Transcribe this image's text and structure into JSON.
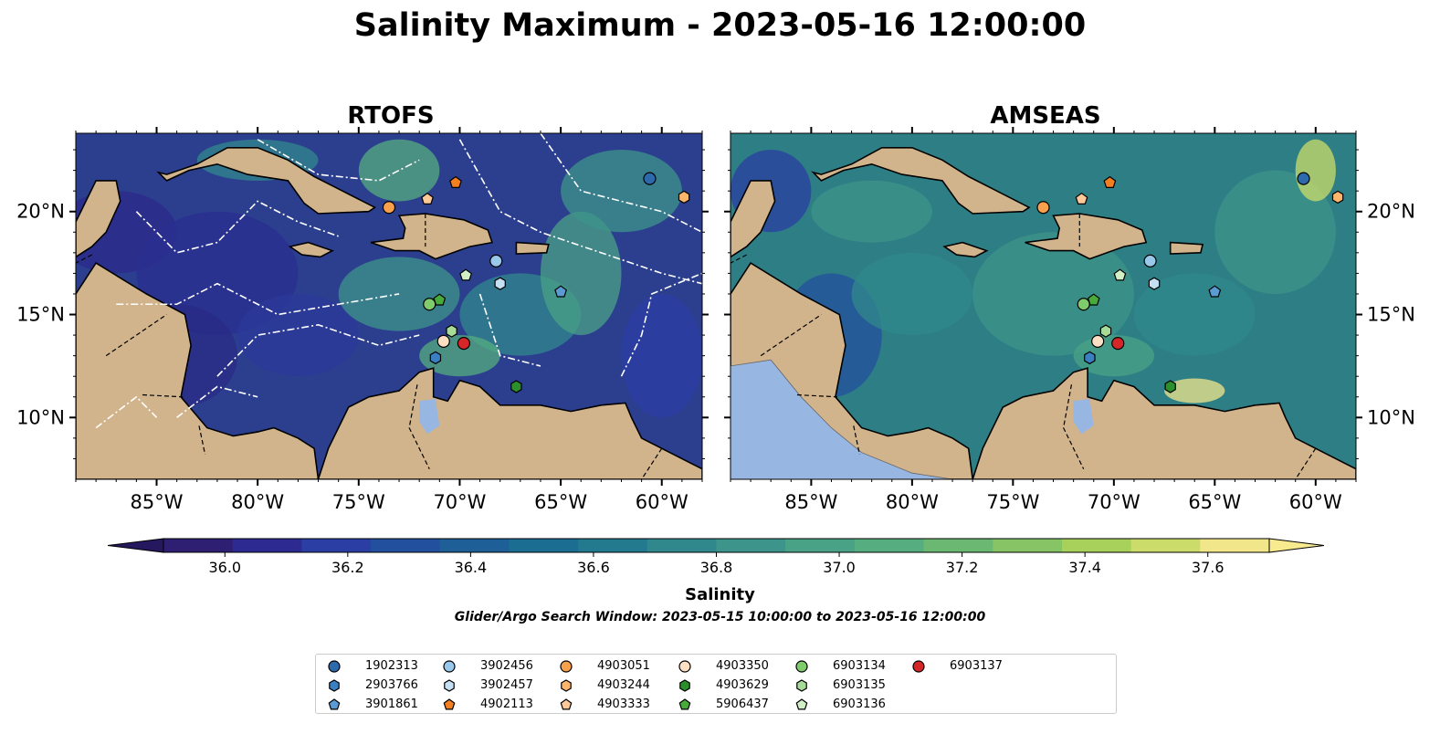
{
  "title": "Salinity Maximum - 2023-05-16 12:00:00",
  "panels": [
    {
      "id": "rtofs",
      "title": "RTOFS",
      "lat_labels_side": "left"
    },
    {
      "id": "amseas",
      "title": "AMSEAS",
      "lat_labels_side": "right"
    }
  ],
  "map_extent": {
    "lon": [
      -89,
      -58
    ],
    "lat": [
      7,
      23.8
    ]
  },
  "lon_ticks": [
    {
      "value": -85,
      "label": "85°W"
    },
    {
      "value": -80,
      "label": "80°W"
    },
    {
      "value": -75,
      "label": "75°W"
    },
    {
      "value": -70,
      "label": "70°W"
    },
    {
      "value": -65,
      "label": "65°W"
    },
    {
      "value": -60,
      "label": "60°W"
    }
  ],
  "lat_ticks": [
    {
      "value": 20,
      "label": "20°N"
    },
    {
      "value": 15,
      "label": "15°N"
    },
    {
      "value": 10,
      "label": "10°N"
    }
  ],
  "colorbar": {
    "label": "Salinity",
    "range": [
      35.9,
      37.7
    ],
    "extend": "both",
    "ticks": [
      "36.0",
      "36.2",
      "36.4",
      "36.6",
      "36.8",
      "37.0",
      "37.2",
      "37.4",
      "37.6"
    ],
    "colors": [
      "#2e1f73",
      "#2d2b91",
      "#2b3ea3",
      "#23509e",
      "#1e5f97",
      "#1b6d92",
      "#237a8f",
      "#30888c",
      "#3d948a",
      "#4aa286",
      "#56ad7f",
      "#6bb872",
      "#86c465",
      "#a8d15b",
      "#cbdc6a",
      "#f2e68b"
    ],
    "under_color": "#26185e",
    "over_color": "#f7ea8f"
  },
  "search_window": "Glider/Argo Search Window: 2023-05-15 10:00:00 to 2023-05-16 12:00:00",
  "colors": {
    "land": "#d2b48c",
    "lakes": "#97b6e1",
    "rtofs_ocean": "#2c3f8f",
    "amseas_ocean": "#2e7f85"
  },
  "platforms": [
    {
      "id": "1902313",
      "marker": "circle",
      "color": "#2c6aab",
      "lon": -60.6,
      "lat": 21.6
    },
    {
      "id": "2903766",
      "marker": "hexagon",
      "color": "#3a7fc1",
      "lon": -71.2,
      "lat": 12.9
    },
    {
      "id": "3901861",
      "marker": "pentagon",
      "color": "#5a9bd4",
      "lon": -65.0,
      "lat": 16.1
    },
    {
      "id": "3902456",
      "marker": "circle",
      "color": "#9ac8ea",
      "lon": -68.2,
      "lat": 17.6
    },
    {
      "id": "3902457",
      "marker": "hexagon",
      "color": "#c6e0f3",
      "lon": -68.0,
      "lat": 16.5
    },
    {
      "id": "4902113",
      "marker": "pentagon",
      "color": "#f47f20",
      "lon": -70.2,
      "lat": 21.4
    },
    {
      "id": "4903051",
      "marker": "circle",
      "color": "#f8a04c",
      "lon": -73.5,
      "lat": 20.2
    },
    {
      "id": "4903244",
      "marker": "hexagon",
      "color": "#fdb46b",
      "lon": -58.9,
      "lat": 20.7
    },
    {
      "id": "4903333",
      "marker": "pentagon",
      "color": "#fdc998",
      "lon": -71.6,
      "lat": 20.6
    },
    {
      "id": "4903350",
      "marker": "circle",
      "color": "#fde0c4",
      "lon": -70.8,
      "lat": 13.7
    },
    {
      "id": "4903629",
      "marker": "hexagon",
      "color": "#2b8f2b",
      "lon": -67.2,
      "lat": 11.5
    },
    {
      "id": "5906437",
      "marker": "pentagon",
      "color": "#48aa3b",
      "lon": -71.0,
      "lat": 15.7
    },
    {
      "id": "6903134",
      "marker": "circle",
      "color": "#7fcc6c",
      "lon": -71.5,
      "lat": 15.5
    },
    {
      "id": "6903135",
      "marker": "hexagon",
      "color": "#a6dc98",
      "lon": -70.4,
      "lat": 14.2
    },
    {
      "id": "6903136",
      "marker": "pentagon",
      "color": "#d2efc6",
      "lon": -69.7,
      "lat": 16.9
    },
    {
      "id": "6903137",
      "marker": "circle",
      "color": "#d62728",
      "lon": -69.8,
      "lat": 13.6
    }
  ]
}
